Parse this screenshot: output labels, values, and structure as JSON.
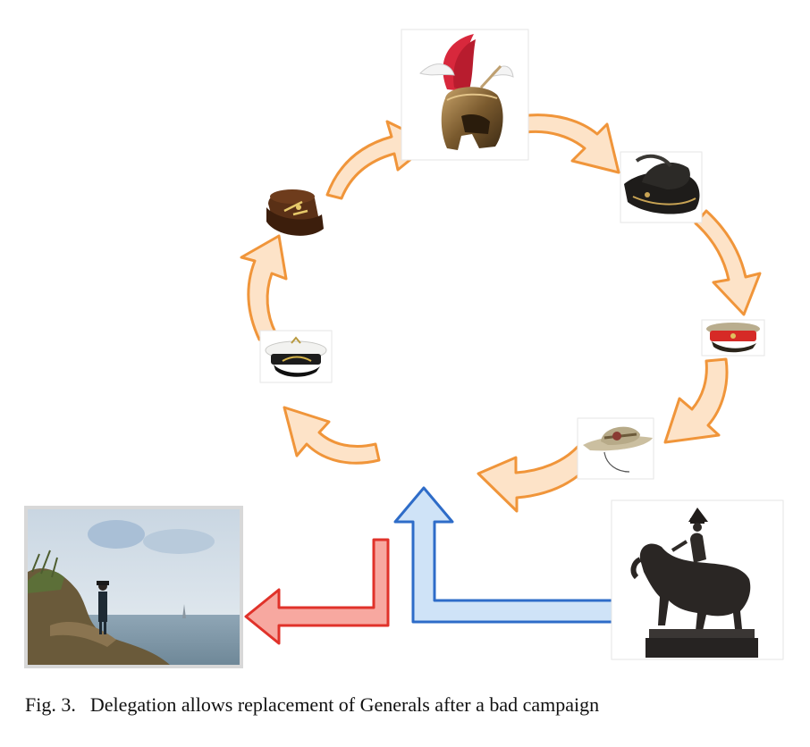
{
  "caption": {
    "label": "Fig. 3.",
    "text": "Delegation allows replacement of Generals after a bad campaign"
  },
  "colors": {
    "cycle_arrow_fill": "#fde3c8",
    "cycle_arrow_stroke": "#f0953a",
    "return_arrow_fill": "#f7a8a0",
    "return_arrow_stroke": "#e0322a",
    "entry_arrow_fill": "#cfe3f7",
    "entry_arrow_stroke": "#2e6cc8"
  },
  "cycle_items": [
    "roman-helmet-icon",
    "cavalry-hat-icon",
    "red-band-peaked-cap-icon",
    "slouch-hat-icon",
    "white-peaked-cap-icon",
    "shako-hat-icon"
  ],
  "side_images": [
    "exile-on-cliff-painting",
    "equestrian-statue"
  ]
}
